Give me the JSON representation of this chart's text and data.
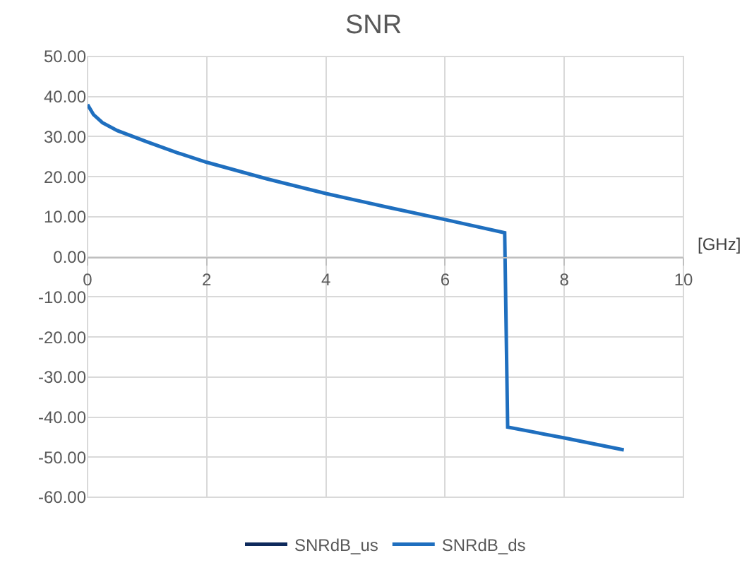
{
  "chart_data": {
    "type": "line",
    "title": "SNR",
    "xlabel": "[GHz]",
    "x": [
      0,
      0.1,
      0.25,
      0.5,
      1,
      1.5,
      2,
      3,
      4,
      5,
      6,
      7,
      7.05,
      8,
      9
    ],
    "series": [
      {
        "name": "SNRdB_us",
        "color": "#0e2a5c",
        "values": [
          null,
          null,
          null,
          null,
          null,
          null,
          null,
          null,
          null,
          null,
          null,
          null,
          null,
          null,
          null
        ]
      },
      {
        "name": "SNRdB_ds",
        "color": "#1f6fbf",
        "values": [
          38,
          35.5,
          33.5,
          31.5,
          28.7,
          26,
          23.6,
          19.5,
          15.8,
          12.5,
          9.3,
          6.0,
          -42.5,
          -45.2,
          -48.2
        ]
      }
    ],
    "xlim": [
      0,
      10
    ],
    "xticks": [
      0,
      2,
      4,
      6,
      8,
      10
    ],
    "ylim": [
      -60,
      50
    ],
    "yticks": [
      {
        "value": -60,
        "label": "-60.00"
      },
      {
        "value": -50,
        "label": "-50.00"
      },
      {
        "value": -40,
        "label": "-40.00"
      },
      {
        "value": -30,
        "label": "-30.00"
      },
      {
        "value": -20,
        "label": "-20.00"
      },
      {
        "value": -10,
        "label": "-10.00"
      },
      {
        "value": 0,
        "label": "0.00"
      },
      {
        "value": 10,
        "label": "10.00"
      },
      {
        "value": 20,
        "label": "20.00"
      },
      {
        "value": 30,
        "label": "30.00"
      },
      {
        "value": 40,
        "label": "40.00"
      },
      {
        "value": 50,
        "label": "50.00"
      }
    ],
    "grid": true,
    "legend": "bottom",
    "marker": "none",
    "line_style": "solid"
  }
}
